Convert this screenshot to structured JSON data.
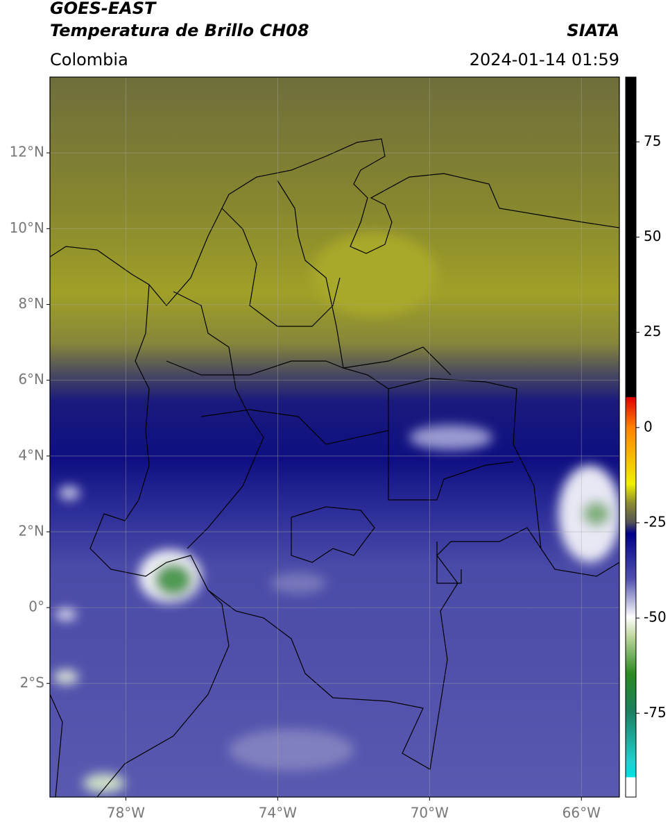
{
  "header": {
    "title": "GOES-EAST",
    "subtitle": "Temperatura de Brillo CH08",
    "source": "SIATA",
    "region": "Colombia",
    "datetime": "2024-01-14 01:59"
  },
  "map": {
    "xlim": [
      -80,
      -65
    ],
    "ylim": [
      -5,
      14
    ],
    "xticks": [
      {
        "value": -78,
        "label": "78°W"
      },
      {
        "value": -74,
        "label": "74°W"
      },
      {
        "value": -70,
        "label": "70°W"
      },
      {
        "value": -66,
        "label": "66°W"
      }
    ],
    "yticks": [
      {
        "value": 12,
        "label": "12°N"
      },
      {
        "value": 10,
        "label": "10°N"
      },
      {
        "value": 8,
        "label": "8°N"
      },
      {
        "value": 6,
        "label": "6°N"
      },
      {
        "value": 4,
        "label": "4°N"
      },
      {
        "value": 2,
        "label": "2°N"
      },
      {
        "value": 0,
        "label": "0°"
      },
      {
        "value": -2,
        "label": "2°S"
      }
    ],
    "grid": true
  },
  "colorbar": {
    "clim": [
      -97,
      92
    ],
    "ticks": [
      75,
      50,
      25,
      0,
      -25,
      -50,
      -75
    ]
  }
}
